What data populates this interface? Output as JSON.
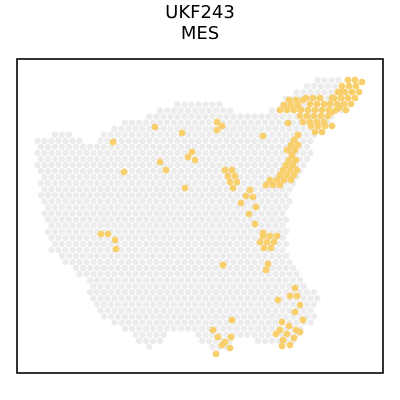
{
  "chart_data": {
    "type": "scatter",
    "title_lines": [
      "UKF243",
      "MES"
    ],
    "xlabel": "",
    "ylabel": "",
    "grid": false,
    "legend": "none",
    "axis_ticks": false,
    "colors": {
      "background_spots": "#ececec",
      "highlight_spots": "#f8cf6b",
      "frame": "#000000"
    },
    "series": [
      {
        "role": "tissue",
        "regions": [
          [
            [
              35,
              140
            ],
            [
              60,
              130
            ],
            [
              80,
              140
            ],
            [
              95,
              145
            ],
            [
              105,
              130
            ],
            [
              125,
              120
            ],
            [
              140,
              120
            ],
            [
              160,
              110
            ],
            [
              185,
              100
            ],
            [
              215,
              100
            ],
            [
              240,
              115
            ],
            [
              265,
              115
            ],
            [
              280,
              100
            ],
            [
              300,
              90
            ],
            [
              320,
              75
            ],
            [
              335,
              75
            ],
            [
              350,
              95
            ],
            [
              345,
              110
            ],
            [
              330,
              120
            ],
            [
              315,
              140
            ],
            [
              305,
              170
            ],
            [
              295,
              180
            ],
            [
              290,
              200
            ],
            [
              288,
              240
            ],
            [
              290,
              260
            ],
            [
              305,
              280
            ],
            [
              320,
              300
            ],
            [
              315,
              320
            ],
            [
              300,
              335
            ],
            [
              290,
              345
            ],
            [
              270,
              345
            ],
            [
              250,
              340
            ],
            [
              235,
              340
            ],
            [
              230,
              350
            ],
            [
              215,
              355
            ],
            [
              205,
              345
            ],
            [
              190,
              330
            ],
            [
              175,
              330
            ],
            [
              160,
              345
            ],
            [
              145,
              350
            ],
            [
              135,
              335
            ],
            [
              115,
              325
            ],
            [
              100,
              320
            ],
            [
              90,
              300
            ],
            [
              85,
              280
            ],
            [
              70,
              268
            ],
            [
              60,
              260
            ],
            [
              50,
              250
            ],
            [
              45,
              220
            ],
            [
              40,
              190
            ],
            [
              35,
              160
            ]
          ]
        ]
      },
      {
        "role": "MES-high",
        "points": [
          [
            289,
            100
          ],
          [
            296,
            100
          ],
          [
            303,
            100
          ],
          [
            284,
            105
          ],
          [
            291,
            105
          ],
          [
            298,
            105
          ],
          [
            280,
            110
          ],
          [
            287,
            110
          ],
          [
            294,
            110
          ],
          [
            301,
            110
          ],
          [
            308,
            110
          ],
          [
            315,
            110
          ],
          [
            322,
            110
          ],
          [
            329,
            110
          ],
          [
            336,
            110
          ],
          [
            300,
            116
          ],
          [
            307,
            116
          ],
          [
            314,
            116
          ],
          [
            321,
            116
          ],
          [
            328,
            116
          ],
          [
            303,
            122
          ],
          [
            310,
            122
          ],
          [
            317,
            122
          ],
          [
            324,
            122
          ],
          [
            330,
            104
          ],
          [
            337,
            104
          ],
          [
            344,
            104
          ],
          [
            351,
            104
          ],
          [
            334,
            98
          ],
          [
            341,
            98
          ],
          [
            348,
            98
          ],
          [
            355,
            98
          ],
          [
            338,
            92
          ],
          [
            345,
            92
          ],
          [
            352,
            92
          ],
          [
            359,
            92
          ],
          [
            342,
            86
          ],
          [
            349,
            86
          ],
          [
            356,
            86
          ],
          [
            362,
            82
          ],
          [
            355,
            80
          ],
          [
            348,
            80
          ],
          [
            341,
            92
          ],
          [
            332,
            98
          ],
          [
            310,
            104
          ],
          [
            317,
            104
          ],
          [
            324,
            104
          ],
          [
            306,
            98
          ],
          [
            313,
            98
          ],
          [
            320,
            98
          ],
          [
            311,
            126
          ],
          [
            318,
            126
          ],
          [
            325,
            126
          ],
          [
            332,
            126
          ],
          [
            315,
            132
          ],
          [
            322,
            132
          ],
          [
            332,
            112
          ],
          [
            339,
            108
          ],
          [
            346,
            110
          ],
          [
            294,
            140
          ],
          [
            291,
            145
          ],
          [
            298,
            145
          ],
          [
            288,
            150
          ],
          [
            295,
            150
          ],
          [
            292,
            155
          ],
          [
            289,
            160
          ],
          [
            296,
            160
          ],
          [
            286,
            165
          ],
          [
            293,
            165
          ],
          [
            283,
            170
          ],
          [
            290,
            170
          ],
          [
            297,
            170
          ],
          [
            280,
            175
          ],
          [
            287,
            175
          ],
          [
            294,
            175
          ],
          [
            270,
            180
          ],
          [
            277,
            180
          ],
          [
            284,
            180
          ],
          [
            291,
            180
          ],
          [
            273,
            185
          ],
          [
            280,
            185
          ],
          [
            266,
            185
          ],
          [
            287,
            150
          ],
          [
            298,
            135
          ],
          [
            217,
            122
          ],
          [
            217,
            130
          ],
          [
            222,
            126
          ],
          [
            263,
            136
          ],
          [
            288,
            123
          ],
          [
            155,
            127
          ],
          [
            182,
            133
          ],
          [
            113,
            142
          ],
          [
            160,
            162
          ],
          [
            166,
            170
          ],
          [
            188,
            157
          ],
          [
            192,
            152
          ],
          [
            195,
            160
          ],
          [
            124,
            172
          ],
          [
            185,
            188
          ],
          [
            225,
            170
          ],
          [
            232,
            170
          ],
          [
            228,
            176
          ],
          [
            235,
            176
          ],
          [
            230,
            182
          ],
          [
            237,
            182
          ],
          [
            233,
            188
          ],
          [
            250,
            190
          ],
          [
            246,
            196
          ],
          [
            241,
            203
          ],
          [
            253,
            197
          ],
          [
            256,
            207
          ],
          [
            249,
            214
          ],
          [
            255,
            224
          ],
          [
            263,
            236
          ],
          [
            270,
            236
          ],
          [
            277,
            236
          ],
          [
            260,
            242
          ],
          [
            267,
            242
          ],
          [
            274,
            242
          ],
          [
            264,
            248
          ],
          [
            271,
            248
          ],
          [
            268,
            264
          ],
          [
            266,
            270
          ],
          [
            263,
            233
          ],
          [
            101,
            234
          ],
          [
            108,
            234
          ],
          [
            115,
            240
          ],
          [
            116,
            249
          ],
          [
            223,
            265
          ],
          [
            295,
            288
          ],
          [
            290,
            296
          ],
          [
            297,
            296
          ],
          [
            278,
            300
          ],
          [
            300,
            305
          ],
          [
            295,
            312
          ],
          [
            303,
            320
          ],
          [
            282,
            322
          ],
          [
            289,
            326
          ],
          [
            296,
            330
          ],
          [
            280,
            330
          ],
          [
            287,
            334
          ],
          [
            294,
            338
          ],
          [
            283,
            340
          ],
          [
            290,
            345
          ],
          [
            282,
            346
          ],
          [
            276,
            334
          ],
          [
            300,
            332
          ],
          [
            213,
            330
          ],
          [
            218,
            337
          ],
          [
            225,
            342
          ],
          [
            232,
            320
          ],
          [
            222,
            345
          ],
          [
            230,
            348
          ],
          [
            216,
            354
          ],
          [
            231,
            337
          ]
        ]
      }
    ]
  }
}
